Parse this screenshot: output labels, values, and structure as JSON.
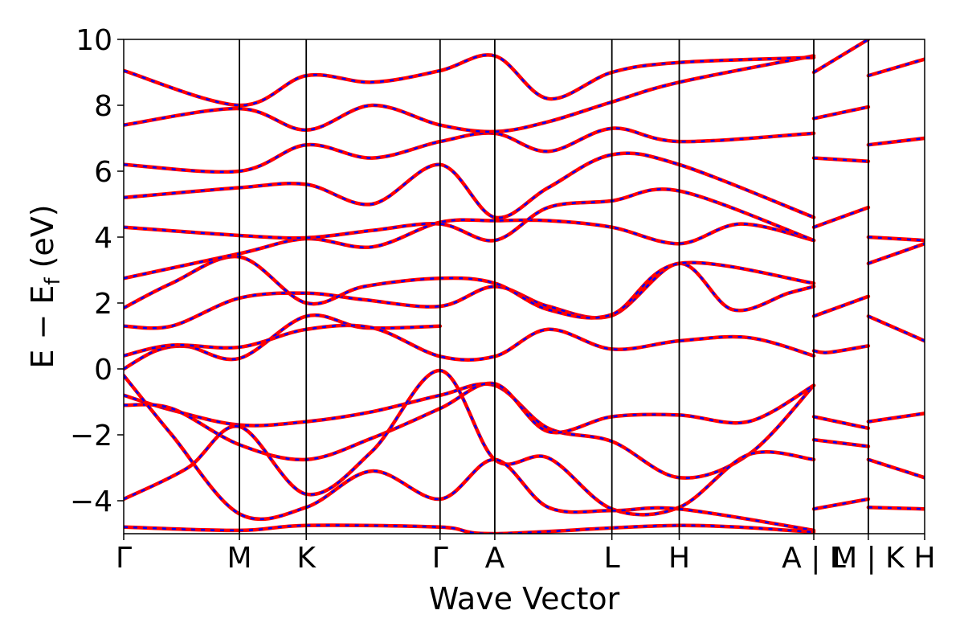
{
  "chart_data": {
    "type": "line",
    "title": "",
    "xlabel": "Wave Vector",
    "ylabel": "E − Eƒ (eV)",
    "ylabel_main": "E − E",
    "ylabel_sub": "f",
    "ylabel_unit": " (eV)",
    "ylim": [
      -5,
      10
    ],
    "xlim": [
      0,
      1
    ],
    "yticks": [
      -4,
      -2,
      0,
      2,
      4,
      6,
      8,
      10
    ],
    "ytick_labels": [
      "−4",
      "−2",
      "0",
      "2",
      "4",
      "6",
      "8",
      "10"
    ],
    "kpoints": [
      {
        "label": "Γ",
        "x": 0.0
      },
      {
        "label": "M",
        "x": 0.1445
      },
      {
        "label": "K",
        "x": 0.2279
      },
      {
        "label": "Γ",
        "x": 0.395
      },
      {
        "label": "A",
        "x": 0.4633
      },
      {
        "label": "L",
        "x": 0.6095
      },
      {
        "label": "H",
        "x": 0.6936
      },
      {
        "label": "A | L",
        "x": 0.8616
      },
      {
        "label": "M | K",
        "x": 0.9297
      },
      {
        "label": "H",
        "x": 1.0
      }
    ],
    "grid": false,
    "legend": "none",
    "colors": {
      "solid": "#ff0000",
      "dashed": "#0000ff",
      "axes": "#000000"
    },
    "series": [
      {
        "values": [
          [
            0,
            0.0
          ],
          [
            0.04,
            0.55
          ],
          [
            0.08,
            0.68
          ],
          [
            0.1445,
            0.32
          ],
          [
            0.2279,
            1.6
          ],
          [
            0.3,
            1.25
          ],
          [
            0.395,
            1.3
          ]
        ]
      },
      {
        "values": [
          [
            0,
            0.4
          ],
          [
            0.06,
            0.72
          ],
          [
            0.1445,
            0.66
          ],
          [
            0.2279,
            1.2
          ],
          [
            0.31,
            1.25
          ],
          [
            0.395,
            0.38
          ],
          [
            0.4633,
            0.38
          ],
          [
            0.53,
            1.2
          ],
          [
            0.6095,
            0.6
          ],
          [
            0.6936,
            0.85
          ],
          [
            0.78,
            0.95
          ],
          [
            0.8616,
            0.4
          ]
        ]
      },
      {
        "values": [
          [
            0,
            1.3
          ],
          [
            0.06,
            1.3
          ],
          [
            0.1445,
            2.15
          ],
          [
            0.2279,
            2.3
          ],
          [
            0.3,
            2.1
          ],
          [
            0.395,
            1.9
          ],
          [
            0.4633,
            2.5
          ],
          [
            0.53,
            1.9
          ],
          [
            0.6095,
            1.62
          ],
          [
            0.6936,
            3.2
          ],
          [
            0.76,
            1.8
          ],
          [
            0.83,
            2.3
          ],
          [
            0.8616,
            2.5
          ]
        ]
      },
      {
        "values": [
          [
            0,
            1.85
          ],
          [
            0.06,
            2.6
          ],
          [
            0.1445,
            3.4
          ],
          [
            0.2279,
            2.0
          ],
          [
            0.3,
            2.5
          ],
          [
            0.395,
            2.75
          ],
          [
            0.4633,
            2.6
          ],
          [
            0.53,
            1.8
          ],
          [
            0.6095,
            1.65
          ],
          [
            0.6936,
            3.2
          ],
          [
            0.8616,
            2.6
          ]
        ]
      },
      {
        "values": [
          [
            0,
            2.75
          ],
          [
            0.1445,
            3.5
          ],
          [
            0.2279,
            3.95
          ],
          [
            0.31,
            3.7
          ],
          [
            0.395,
            4.45
          ],
          [
            0.4633,
            4.5
          ],
          [
            0.53,
            4.5
          ],
          [
            0.6095,
            4.3
          ],
          [
            0.6936,
            3.8
          ],
          [
            0.77,
            4.4
          ],
          [
            0.8616,
            3.9
          ]
        ]
      },
      {
        "values": [
          [
            0,
            4.3
          ],
          [
            0.1445,
            4.05
          ],
          [
            0.2279,
            3.98
          ],
          [
            0.31,
            4.2
          ],
          [
            0.395,
            4.4
          ],
          [
            0.4633,
            3.9
          ],
          [
            0.53,
            4.9
          ],
          [
            0.6095,
            5.1
          ],
          [
            0.6936,
            5.4
          ],
          [
            0.8616,
            3.9
          ]
        ]
      },
      {
        "values": [
          [
            0,
            5.2
          ],
          [
            0.1445,
            5.5
          ],
          [
            0.2279,
            5.6
          ],
          [
            0.31,
            5.0
          ],
          [
            0.395,
            6.2
          ],
          [
            0.4633,
            4.6
          ],
          [
            0.53,
            5.5
          ],
          [
            0.6095,
            6.5
          ],
          [
            0.6936,
            6.2
          ],
          [
            0.8616,
            4.6
          ]
        ]
      },
      {
        "values": [
          [
            0,
            6.2
          ],
          [
            0.1445,
            6.0
          ],
          [
            0.2279,
            6.8
          ],
          [
            0.31,
            6.4
          ],
          [
            0.395,
            6.9
          ],
          [
            0.4633,
            7.15
          ],
          [
            0.53,
            6.6
          ],
          [
            0.6095,
            7.3
          ],
          [
            0.6936,
            6.9
          ],
          [
            0.8616,
            7.15
          ]
        ]
      },
      {
        "values": [
          [
            0,
            7.4
          ],
          [
            0.1445,
            7.9
          ],
          [
            0.2279,
            7.25
          ],
          [
            0.31,
            8.0
          ],
          [
            0.395,
            7.4
          ],
          [
            0.4633,
            7.2
          ],
          [
            0.53,
            7.5
          ],
          [
            0.6095,
            8.1
          ],
          [
            0.6936,
            8.7
          ],
          [
            0.8616,
            9.5
          ]
        ]
      },
      {
        "values": [
          [
            0,
            9.05
          ],
          [
            0.1445,
            8.0
          ],
          [
            0.2279,
            8.9
          ],
          [
            0.31,
            8.7
          ],
          [
            0.395,
            9.05
          ],
          [
            0.4633,
            9.5
          ],
          [
            0.53,
            8.2
          ],
          [
            0.6095,
            9.0
          ],
          [
            0.6936,
            9.3
          ],
          [
            0.8616,
            9.45
          ]
        ]
      },
      {
        "values": [
          [
            0,
            -0.8
          ],
          [
            0.06,
            -1.25
          ],
          [
            0.1445,
            -1.7
          ],
          [
            0.2279,
            -1.6
          ],
          [
            0.31,
            -1.3
          ],
          [
            0.395,
            -0.8
          ],
          [
            0.4633,
            -0.5
          ],
          [
            0.53,
            -1.8
          ],
          [
            0.6095,
            -2.2
          ],
          [
            0.6936,
            -3.3
          ],
          [
            0.78,
            -2.6
          ],
          [
            0.8616,
            -0.5
          ]
        ]
      },
      {
        "values": [
          [
            0,
            -1.1
          ],
          [
            0.06,
            -1.2
          ],
          [
            0.1445,
            -2.3
          ],
          [
            0.2279,
            -2.75
          ],
          [
            0.31,
            -2.1
          ],
          [
            0.395,
            -1.2
          ],
          [
            0.4633,
            -0.45
          ],
          [
            0.53,
            -1.9
          ],
          [
            0.6095,
            -1.45
          ],
          [
            0.6936,
            -1.4
          ],
          [
            0.78,
            -1.6
          ],
          [
            0.8616,
            -0.5
          ]
        ]
      },
      {
        "values": [
          [
            0,
            -3.95
          ],
          [
            0.08,
            -3.0
          ],
          [
            0.1445,
            -1.75
          ],
          [
            0.2279,
            -3.8
          ],
          [
            0.31,
            -2.5
          ],
          [
            0.395,
            -0.05
          ],
          [
            0.4633,
            -2.75
          ],
          [
            0.53,
            -2.7
          ],
          [
            0.6095,
            -4.25
          ],
          [
            0.6936,
            -4.2
          ],
          [
            0.78,
            -2.6
          ],
          [
            0.8616,
            -2.75
          ]
        ]
      },
      {
        "values": [
          [
            0,
            -0.2
          ],
          [
            0.06,
            -2.0
          ],
          [
            0.1445,
            -4.4
          ],
          [
            0.2279,
            -4.2
          ],
          [
            0.31,
            -3.1
          ],
          [
            0.395,
            -3.95
          ],
          [
            0.4633,
            -2.75
          ],
          [
            0.53,
            -4.2
          ],
          [
            0.6095,
            -4.3
          ],
          [
            0.6936,
            -4.25
          ],
          [
            0.8616,
            -4.9
          ]
        ]
      },
      {
        "values": [
          [
            0,
            -4.8
          ],
          [
            0.1445,
            -4.9
          ],
          [
            0.2279,
            -4.75
          ],
          [
            0.395,
            -4.8
          ],
          [
            0.4633,
            -5.0
          ],
          [
            0.6936,
            -4.75
          ],
          [
            0.8616,
            -4.95
          ]
        ]
      },
      {
        "values": [
          [
            0.8616,
            0.55
          ],
          [
            0.88,
            0.5
          ],
          [
            0.9297,
            0.7
          ]
        ]
      },
      {
        "values": [
          [
            0.8616,
            -1.45
          ],
          [
            0.9297,
            -1.8
          ]
        ]
      },
      {
        "values": [
          [
            0.8616,
            -2.15
          ],
          [
            0.9297,
            -2.35
          ]
        ]
      },
      {
        "values": [
          [
            0.8616,
            -4.25
          ],
          [
            0.9297,
            -3.95
          ]
        ]
      },
      {
        "values": [
          [
            0.8616,
            1.6
          ],
          [
            0.9297,
            2.2
          ]
        ]
      },
      {
        "values": [
          [
            0.8616,
            4.3
          ],
          [
            0.9297,
            4.9
          ]
        ]
      },
      {
        "values": [
          [
            0.8616,
            6.4
          ],
          [
            0.9297,
            6.3
          ]
        ]
      },
      {
        "values": [
          [
            0.8616,
            7.6
          ],
          [
            0.9297,
            7.95
          ]
        ]
      },
      {
        "values": [
          [
            0.8616,
            9.0
          ],
          [
            0.9297,
            10.0
          ]
        ]
      },
      {
        "values": [
          [
            0.9297,
            -1.6
          ],
          [
            1.0,
            -1.35
          ]
        ]
      },
      {
        "values": [
          [
            0.9297,
            -2.75
          ],
          [
            1.0,
            -3.3
          ]
        ]
      },
      {
        "values": [
          [
            0.9297,
            -4.2
          ],
          [
            1.0,
            -4.25
          ]
        ]
      },
      {
        "values": [
          [
            0.9297,
            1.6
          ],
          [
            1.0,
            0.85
          ]
        ]
      },
      {
        "values": [
          [
            0.9297,
            3.2
          ],
          [
            1.0,
            3.8
          ]
        ]
      },
      {
        "values": [
          [
            0.9297,
            4.0
          ],
          [
            1.0,
            3.9
          ]
        ]
      },
      {
        "values": [
          [
            0.9297,
            6.8
          ],
          [
            1.0,
            7.0
          ]
        ]
      },
      {
        "values": [
          [
            0.9297,
            8.9
          ],
          [
            1.0,
            9.4
          ]
        ]
      }
    ]
  }
}
